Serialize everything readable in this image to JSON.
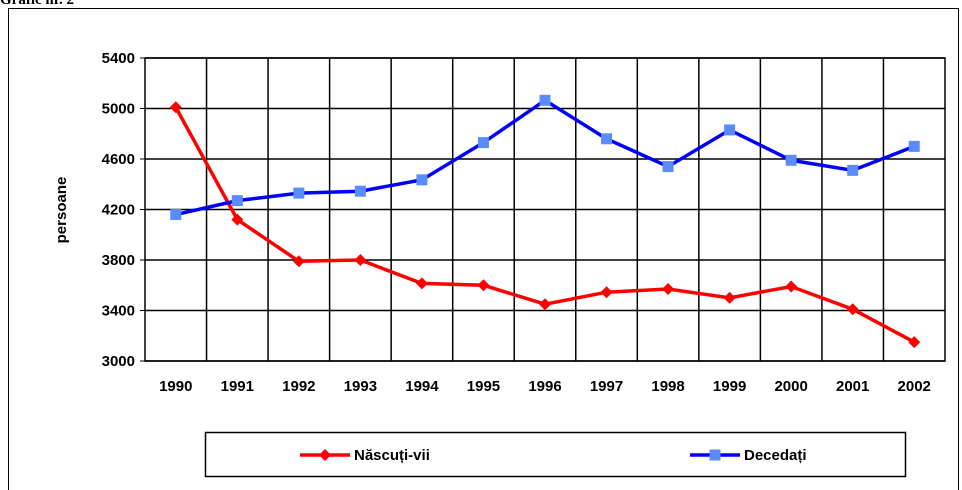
{
  "heading": "Grafic nr. 2",
  "chart_data": {
    "type": "line",
    "y_label": "persoane",
    "categories": [
      "1990",
      "1991",
      "1992",
      "1993",
      "1994",
      "1995",
      "1996",
      "1997",
      "1998",
      "1999",
      "2000",
      "2001",
      "2002"
    ],
    "series": [
      {
        "name": "Născuți-vii",
        "color": "#ff0000",
        "marker": "diamond",
        "values": [
          5010,
          4120,
          3790,
          3800,
          3615,
          3600,
          3450,
          3545,
          3570,
          3500,
          3590,
          3410,
          3150
        ]
      },
      {
        "name": "Decedați",
        "color": "#0000ff",
        "marker_color": "#5b8cff",
        "marker": "square",
        "values": [
          4160,
          4270,
          4330,
          4345,
          4435,
          4730,
          5065,
          4760,
          4540,
          4830,
          4590,
          4510,
          4700
        ]
      }
    ],
    "ylim": [
      3000,
      5400
    ],
    "yticks": [
      3000,
      3400,
      3800,
      4200,
      4600,
      5000,
      5400
    ],
    "grid": true
  }
}
